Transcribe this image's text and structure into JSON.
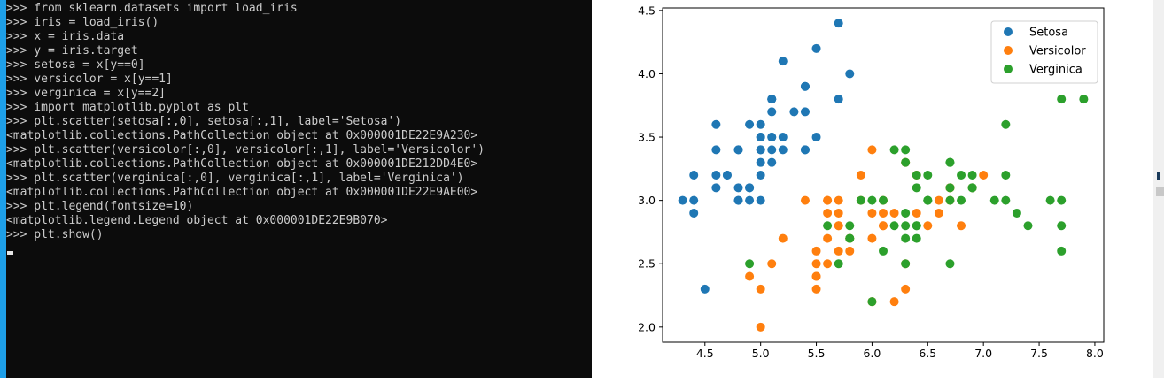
{
  "console": {
    "lines": [
      ">>> from sklearn.datasets import load_iris",
      ">>> iris = load_iris()",
      ">>> x = iris.data",
      ">>> y = iris.target",
      ">>> setosa = x[y==0]",
      ">>> versicolor = x[y==1]",
      ">>> verginica = x[y==2]",
      ">>> import matplotlib.pyplot as plt",
      ">>> plt.scatter(setosa[:,0], setosa[:,1], label='Setosa')",
      "<matplotlib.collections.PathCollection object at 0x000001DE22E9A230>",
      ">>> plt.scatter(versicolor[:,0], versicolor[:,1], label='Versicolor')",
      "<matplotlib.collections.PathCollection object at 0x000001DE212DD4E0>",
      ">>> plt.scatter(verginica[:,0], verginica[:,1], label='Verginica')",
      "<matplotlib.collections.PathCollection object at 0x000001DE22E9AE00>",
      ">>> plt.legend(fontsize=10)",
      "<matplotlib.legend.Legend object at 0x000001DE22E9B070>",
      ">>> plt.show()"
    ]
  },
  "chart_data": {
    "type": "scatter",
    "xlim": [
      4.12,
      8.08
    ],
    "ylim": [
      1.88,
      4.52
    ],
    "x_ticks": [
      4.5,
      5.0,
      5.5,
      6.0,
      6.5,
      7.0,
      7.5,
      8.0
    ],
    "x_tick_labels": [
      "4.5",
      "5.0",
      "5.5",
      "6.0",
      "6.5",
      "7.0",
      "7.5",
      "8.0"
    ],
    "y_ticks": [
      2.0,
      2.5,
      3.0,
      3.5,
      4.0,
      4.5
    ],
    "y_tick_labels": [
      "2.0",
      "2.5",
      "3.0",
      "3.5",
      "4.0",
      "4.5"
    ],
    "grid": false,
    "legend_position": "top-right",
    "series": [
      {
        "name": "Setosa",
        "color": "#1f77b4",
        "points": [
          [
            5.1,
            3.5
          ],
          [
            4.9,
            3.0
          ],
          [
            4.7,
            3.2
          ],
          [
            4.6,
            3.1
          ],
          [
            5.0,
            3.6
          ],
          [
            5.4,
            3.9
          ],
          [
            4.6,
            3.4
          ],
          [
            5.0,
            3.4
          ],
          [
            4.4,
            2.9
          ],
          [
            4.9,
            3.1
          ],
          [
            5.4,
            3.7
          ],
          [
            4.8,
            3.4
          ],
          [
            4.8,
            3.0
          ],
          [
            4.3,
            3.0
          ],
          [
            5.8,
            4.0
          ],
          [
            5.7,
            4.4
          ],
          [
            5.4,
            3.9
          ],
          [
            5.1,
            3.5
          ],
          [
            5.7,
            3.8
          ],
          [
            5.1,
            3.8
          ],
          [
            5.4,
            3.4
          ],
          [
            5.1,
            3.7
          ],
          [
            4.6,
            3.6
          ],
          [
            5.1,
            3.3
          ],
          [
            4.8,
            3.4
          ],
          [
            5.0,
            3.0
          ],
          [
            5.0,
            3.4
          ],
          [
            5.2,
            3.5
          ],
          [
            5.2,
            3.4
          ],
          [
            4.7,
            3.2
          ],
          [
            4.8,
            3.1
          ],
          [
            5.4,
            3.4
          ],
          [
            5.2,
            4.1
          ],
          [
            5.5,
            4.2
          ],
          [
            4.9,
            3.1
          ],
          [
            5.0,
            3.2
          ],
          [
            5.5,
            3.5
          ],
          [
            4.9,
            3.6
          ],
          [
            4.4,
            3.0
          ],
          [
            5.1,
            3.4
          ],
          [
            5.0,
            3.5
          ],
          [
            4.5,
            2.3
          ],
          [
            4.4,
            3.2
          ],
          [
            5.0,
            3.5
          ],
          [
            5.1,
            3.8
          ],
          [
            4.8,
            3.0
          ],
          [
            5.1,
            3.8
          ],
          [
            4.6,
            3.2
          ],
          [
            5.3,
            3.7
          ],
          [
            5.0,
            3.3
          ]
        ]
      },
      {
        "name": "Versicolor",
        "color": "#ff7f0e",
        "points": [
          [
            7.0,
            3.2
          ],
          [
            6.4,
            3.2
          ],
          [
            6.9,
            3.1
          ],
          [
            5.5,
            2.3
          ],
          [
            6.5,
            2.8
          ],
          [
            5.7,
            2.8
          ],
          [
            6.3,
            3.3
          ],
          [
            4.9,
            2.4
          ],
          [
            6.6,
            2.9
          ],
          [
            5.2,
            2.7
          ],
          [
            5.0,
            2.0
          ],
          [
            5.9,
            3.0
          ],
          [
            6.0,
            2.2
          ],
          [
            6.1,
            2.9
          ],
          [
            5.6,
            2.9
          ],
          [
            6.7,
            3.1
          ],
          [
            5.6,
            3.0
          ],
          [
            5.8,
            2.7
          ],
          [
            6.2,
            2.2
          ],
          [
            5.6,
            2.5
          ],
          [
            5.9,
            3.2
          ],
          [
            6.1,
            2.8
          ],
          [
            6.3,
            2.5
          ],
          [
            6.1,
            2.8
          ],
          [
            6.4,
            2.9
          ],
          [
            6.6,
            3.0
          ],
          [
            6.8,
            2.8
          ],
          [
            6.7,
            3.0
          ],
          [
            6.0,
            2.9
          ],
          [
            5.7,
            2.6
          ],
          [
            5.5,
            2.4
          ],
          [
            5.5,
            2.4
          ],
          [
            5.8,
            2.7
          ],
          [
            6.0,
            2.7
          ],
          [
            5.4,
            3.0
          ],
          [
            6.0,
            3.4
          ],
          [
            6.7,
            3.1
          ],
          [
            6.3,
            2.3
          ],
          [
            5.6,
            3.0
          ],
          [
            5.5,
            2.5
          ],
          [
            5.5,
            2.6
          ],
          [
            6.1,
            3.0
          ],
          [
            5.8,
            2.6
          ],
          [
            5.0,
            2.3
          ],
          [
            5.6,
            2.7
          ],
          [
            5.7,
            3.0
          ],
          [
            5.7,
            2.9
          ],
          [
            6.2,
            2.9
          ],
          [
            5.1,
            2.5
          ],
          [
            5.7,
            2.8
          ]
        ]
      },
      {
        "name": "Verginica",
        "color": "#2ca02c",
        "points": [
          [
            6.3,
            3.3
          ],
          [
            5.8,
            2.7
          ],
          [
            7.1,
            3.0
          ],
          [
            6.3,
            2.9
          ],
          [
            6.5,
            3.0
          ],
          [
            7.6,
            3.0
          ],
          [
            4.9,
            2.5
          ],
          [
            7.3,
            2.9
          ],
          [
            6.7,
            2.5
          ],
          [
            7.2,
            3.6
          ],
          [
            6.5,
            3.2
          ],
          [
            6.4,
            2.7
          ],
          [
            6.8,
            3.0
          ],
          [
            5.7,
            2.5
          ],
          [
            5.8,
            2.8
          ],
          [
            6.4,
            3.2
          ],
          [
            6.5,
            3.0
          ],
          [
            7.7,
            3.8
          ],
          [
            7.7,
            2.6
          ],
          [
            6.0,
            2.2
          ],
          [
            6.9,
            3.2
          ],
          [
            5.6,
            2.8
          ],
          [
            7.7,
            2.8
          ],
          [
            6.3,
            2.7
          ],
          [
            6.7,
            3.3
          ],
          [
            7.2,
            3.2
          ],
          [
            6.2,
            2.8
          ],
          [
            6.1,
            3.0
          ],
          [
            6.4,
            2.8
          ],
          [
            7.2,
            3.0
          ],
          [
            7.4,
            2.8
          ],
          [
            7.9,
            3.8
          ],
          [
            6.4,
            2.8
          ],
          [
            6.3,
            2.8
          ],
          [
            6.1,
            2.6
          ],
          [
            7.7,
            3.0
          ],
          [
            6.3,
            3.4
          ],
          [
            6.4,
            3.1
          ],
          [
            6.0,
            3.0
          ],
          [
            6.9,
            3.1
          ],
          [
            6.7,
            3.1
          ],
          [
            6.9,
            3.1
          ],
          [
            5.8,
            2.7
          ],
          [
            6.8,
            3.2
          ],
          [
            6.7,
            3.3
          ],
          [
            6.7,
            3.0
          ],
          [
            6.3,
            2.5
          ],
          [
            6.5,
            3.0
          ],
          [
            6.2,
            3.4
          ],
          [
            5.9,
            3.0
          ]
        ]
      }
    ]
  }
}
